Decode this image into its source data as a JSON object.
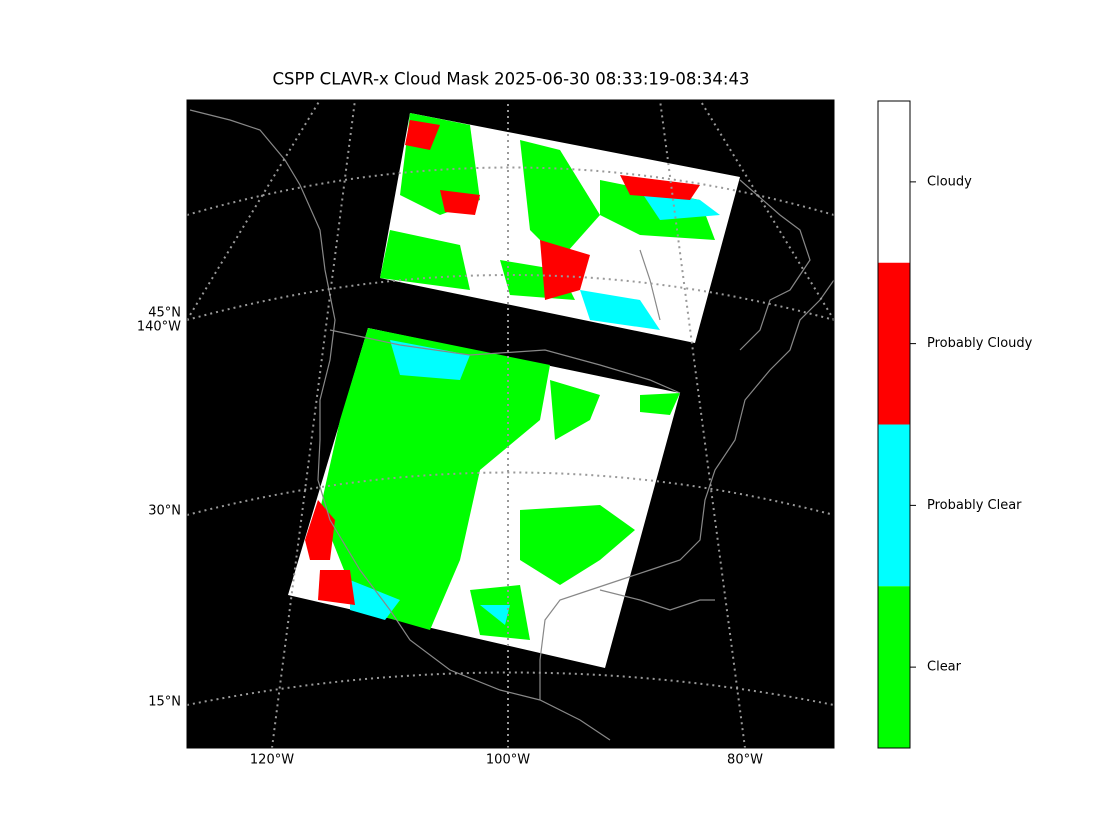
{
  "title": "CSPP CLAVR-x Cloud Mask 2025-06-30 08:33:19-08:34:43",
  "map": {
    "lat_labels": [
      "45°N",
      "30°N",
      "15°N"
    ],
    "lon_labels": [
      "140°W",
      "120°W",
      "100°W",
      "80°W"
    ]
  },
  "colorbar": {
    "categories": [
      {
        "label": "Cloudy",
        "color": "#ffffff"
      },
      {
        "label": "Probably Cloudy",
        "color": "#ff0000"
      },
      {
        "label": "Probably Clear",
        "color": "#00ffff"
      },
      {
        "label": "Clear",
        "color": "#00ff00"
      }
    ]
  }
}
